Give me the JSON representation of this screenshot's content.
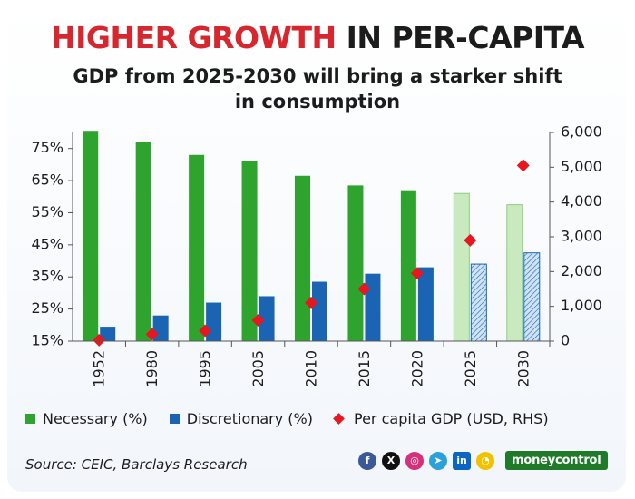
{
  "header": {
    "title_highlight": "HIGHER GROWTH",
    "title_rest": "IN PER-CAPITA",
    "subtitle_line1": "GDP from 2025-2030 will bring a starker shift",
    "subtitle_line2": "in consumption"
  },
  "chart_data": {
    "type": "bar",
    "categories": [
      "1952",
      "1980",
      "1995",
      "2005",
      "2010",
      "2015",
      "2020",
      "2025",
      "2030"
    ],
    "projected_categories": [
      "2025",
      "2030"
    ],
    "series": [
      {
        "name": "Necessary (%)",
        "axis": "left",
        "kind": "bar",
        "values": [
          80.5,
          77,
          73,
          71,
          66.5,
          63.5,
          62,
          61,
          57.5
        ]
      },
      {
        "name": "Discretionary (%)",
        "axis": "left",
        "kind": "bar",
        "values": [
          19.5,
          23,
          27,
          29,
          33.5,
          36,
          38,
          39,
          42.5
        ]
      },
      {
        "name": "Per capita GDP (USD, RHS)",
        "axis": "right",
        "kind": "scatter",
        "values": [
          30,
          200,
          300,
          600,
          1100,
          1500,
          1950,
          2900,
          5050
        ]
      }
    ],
    "y_left": {
      "ylim": [
        15,
        80
      ],
      "ticks": [
        "15%",
        "25%",
        "35%",
        "45%",
        "55%",
        "65%",
        "75%"
      ],
      "tick_values": [
        15,
        25,
        35,
        45,
        55,
        65,
        75
      ]
    },
    "y_right": {
      "ylim": [
        0,
        6000
      ],
      "ticks": [
        "0",
        "1,000",
        "2,000",
        "3,000",
        "4,000",
        "5,000",
        "6,000"
      ],
      "tick_values": [
        0,
        1000,
        2000,
        3000,
        4000,
        5000,
        6000
      ]
    },
    "legend_position": "bottom",
    "grid": false
  },
  "legend": {
    "necessary": "Necessary (%)",
    "discretionary": "Discretionary (%)",
    "gdp": "Per capita GDP (USD, RHS)"
  },
  "colors": {
    "necessary": "#2ea32e",
    "discretionary": "#1a64b3",
    "gdp": "#e8161e",
    "necessary_proj": "#c9e9bf",
    "discretionary_proj": "#cfe3f4"
  },
  "source": "Source: CEIC, Barclays Research",
  "social": {
    "facebook": "f",
    "x": "X",
    "instagram": "◎",
    "telegram": "➤",
    "linkedin": "in",
    "koo": "◔",
    "brand": "moneycontrol"
  }
}
